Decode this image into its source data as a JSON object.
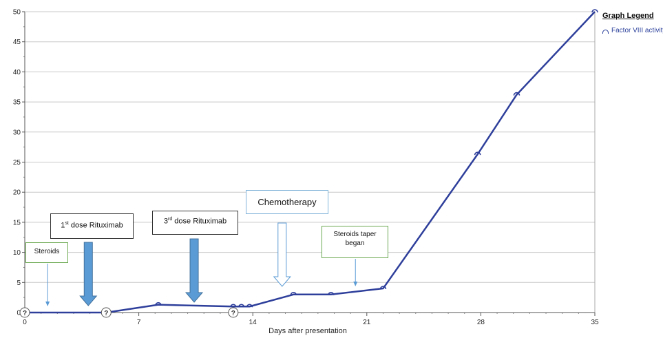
{
  "chart_data": {
    "type": "line",
    "xlabel": "Days after presentation",
    "ylabel": "",
    "xlim": [
      0,
      35
    ],
    "ylim": [
      0,
      50
    ],
    "xticks": [
      0,
      7,
      14,
      21,
      28,
      35
    ],
    "yticks": [
      0,
      5,
      10,
      15,
      20,
      25,
      30,
      35,
      40,
      45,
      50
    ],
    "grid": "horizontal",
    "legend_title": "Graph Legend",
    "series": [
      {
        "name": "Factor VIII activity",
        "color": "#2e3f9b",
        "marker": "semicircle",
        "x": [
          0,
          5,
          8.2,
          12.8,
          13.3,
          13.8,
          16.5,
          18.8,
          22,
          27.8,
          30.2,
          35
        ],
        "y": [
          0,
          0,
          1.3,
          1.0,
          1.0,
          1.0,
          3.0,
          3.0,
          4.0,
          26.3,
          36.2,
          50
        ]
      }
    ],
    "below_detection_markers": [
      {
        "x": 0,
        "y": 0,
        "label": "?"
      },
      {
        "x": 5,
        "y": 0,
        "label": "?"
      },
      {
        "x": 12.8,
        "y": 0,
        "label": "?"
      }
    ],
    "annotations": [
      {
        "id": "steroids",
        "text": "Steroids",
        "x": 1.4
      },
      {
        "id": "rituximab-1",
        "text_prefix": "1",
        "text_sup": "st",
        "text_suffix": " dose Rituximab",
        "x": 3.9
      },
      {
        "id": "rituximab-3",
        "text_prefix": "3",
        "text_sup": "rd",
        "text_suffix": " dose Rituximab",
        "x": 10.4
      },
      {
        "id": "chemotherapy",
        "text": "Chemotherapy",
        "x": 15.8
      },
      {
        "id": "steroid-taper",
        "text": "Steroids taper began",
        "x": 20.3
      }
    ]
  }
}
